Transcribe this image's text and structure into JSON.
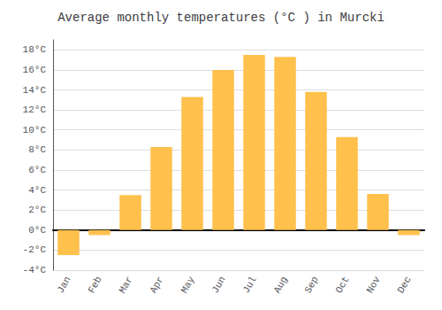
{
  "chart_data": {
    "type": "bar",
    "title": "Average monthly temperatures (°C ) in Murcki",
    "categories": [
      "Jan",
      "Feb",
      "Mar",
      "Apr",
      "May",
      "Jun",
      "Jul",
      "Aug",
      "Sep",
      "Oct",
      "Nov",
      "Dec"
    ],
    "values": [
      -2.5,
      -0.5,
      3.5,
      8.3,
      13.3,
      16.0,
      17.5,
      17.3,
      13.8,
      9.3,
      3.6,
      -0.5
    ],
    "color": "#FFC04C",
    "ylim": [
      -4,
      19
    ],
    "yticks": [
      {
        "value": -4,
        "label": "-4°C"
      },
      {
        "value": -2,
        "label": "-2°C"
      },
      {
        "value": 0,
        "label": "0°C"
      },
      {
        "value": 2,
        "label": "2°C"
      },
      {
        "value": 4,
        "label": "4°C"
      },
      {
        "value": 6,
        "label": "6°C"
      },
      {
        "value": 8,
        "label": "8°C"
      },
      {
        "value": 10,
        "label": "10°C"
      },
      {
        "value": 12,
        "label": "12°C"
      },
      {
        "value": 14,
        "label": "14°C"
      },
      {
        "value": 16,
        "label": "16°C"
      },
      {
        "value": 18,
        "label": "18°C"
      }
    ],
    "grid": true
  }
}
